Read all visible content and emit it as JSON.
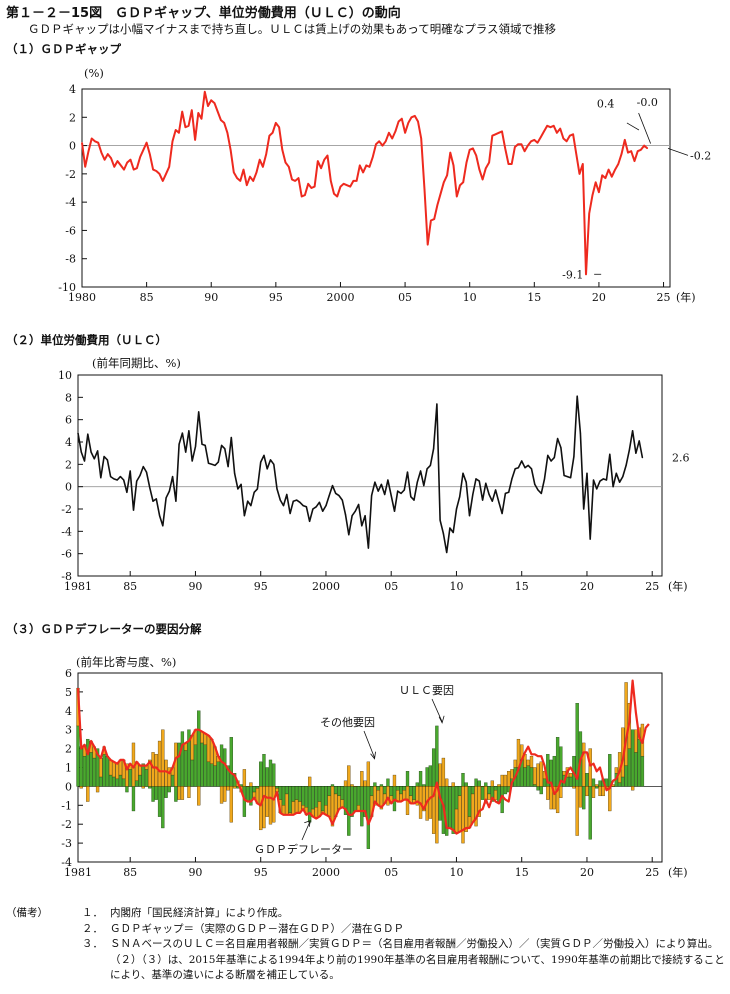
{
  "title": "第１－２－15図　ＧＤＰギャップ、単位労働費用（ＵＬＣ）の動向",
  "subtitle": "ＧＤＰギャップは小幅マイナスまで持ち直し。ＵＬＣは賃上げの効果もあって明確なプラス領域で推移",
  "notes_header": "（備考）",
  "notes": [
    {
      "num": "１．",
      "text": "内閣府「国民経済計算」により作成。"
    },
    {
      "num": "２．",
      "text": "ＧＤＰギャップ＝（実際のＧＤＰ－潜在ＧＤＰ）／潜在ＧＤＰ"
    },
    {
      "num": "３．",
      "text": "ＳＮＡベースのＵＬＣ＝名目雇用者報酬／実質ＧＤＰ＝（名目雇用者報酬／労働投入）／（実質ＧＤＰ／労働投入）により算出。（２）（３）は、2015年基準による1994年より前の1990年基準の名目雇用者報酬について、1990年基準の前期比で接続することにより、基準の違いによる断層を補正している。"
    }
  ],
  "colors": {
    "gap_line": "#ee2a1f",
    "ulc_line": "#111111",
    "deflator_line": "#ee2a1f",
    "ulc_bar": "#49a82e",
    "other_bar": "#f0a81c"
  },
  "chart_data": [
    {
      "type": "line",
      "section_label": "（１）ＧＤＰギャップ",
      "unit_label": "(%)",
      "year_suffix": "(年)",
      "x_start": 1980.0,
      "x_step": 0.25,
      "ylim": [
        -10,
        4
      ],
      "yticks": [
        4,
        2,
        0,
        -2,
        -4,
        -6,
        -8,
        -10
      ],
      "xticks": [
        {
          "v": 1980,
          "label": "1980"
        },
        {
          "v": 1985,
          "label": "85"
        },
        {
          "v": 1990,
          "label": "90"
        },
        {
          "v": 1995,
          "label": "95"
        },
        {
          "v": 2000,
          "label": "2000"
        },
        {
          "v": 2005,
          "label": "05"
        },
        {
          "v": 2010,
          "label": "10"
        },
        {
          "v": 2015,
          "label": "15"
        },
        {
          "v": 2020,
          "label": "20"
        },
        {
          "v": 2025,
          "label": "25"
        }
      ],
      "annotations": [
        {
          "text": "0.4",
          "x": 2023.25,
          "y": 0.4
        },
        {
          "text": "-0.0",
          "x": 2024.0,
          "y": 0.0
        },
        {
          "text": "-0.2",
          "x": 2025.0,
          "y": -0.2
        },
        {
          "text": "-9.1",
          "x": 2020.25,
          "y": -9.1
        }
      ],
      "values": [
        0.2,
        -1.5,
        -0.4,
        0.5,
        0.3,
        0.2,
        -0.5,
        -1.0,
        -0.6,
        -0.9,
        -1.5,
        -1.1,
        -1.4,
        -1.7,
        -1.2,
        -1.0,
        -1.7,
        -1.6,
        -0.8,
        -0.3,
        0.2,
        -0.6,
        -1.7,
        -1.8,
        -2.0,
        -2.5,
        -2.0,
        -1.5,
        0.3,
        1.1,
        0.9,
        2.4,
        1.3,
        1.4,
        2.5,
        0.4,
        2.3,
        1.9,
        3.8,
        2.8,
        3.2,
        3.0,
        2.4,
        1.8,
        1.6,
        0.9,
        -0.3,
        -1.9,
        -2.3,
        -2.5,
        -1.7,
        -2.8,
        -2.2,
        -2.5,
        -1.9,
        -1.0,
        -1.5,
        -0.6,
        0.7,
        0.9,
        1.6,
        1.3,
        -0.3,
        -1.2,
        -1.5,
        -2.4,
        -2.5,
        -2.3,
        -3.6,
        -3.5,
        -2.7,
        -3.0,
        -2.9,
        -1.1,
        -1.6,
        -1.0,
        -0.7,
        -2.5,
        -3.4,
        -3.6,
        -2.9,
        -2.7,
        -2.8,
        -2.9,
        -2.5,
        -2.5,
        -1.4,
        -1.9,
        -1.4,
        -1.5,
        -0.8,
        0.1,
        0.3,
        0.0,
        0.3,
        0.9,
        0.5,
        1.0,
        1.7,
        1.9,
        0.9,
        1.6,
        2.0,
        2.1,
        1.7,
        0.5,
        -3.1,
        -7.0,
        -5.3,
        -5.2,
        -4.2,
        -3.4,
        -2.6,
        -2.1,
        -0.5,
        -1.4,
        -3.6,
        -2.8,
        -2.6,
        -1.2,
        -0.3,
        -0.2,
        -0.7,
        -1.7,
        -2.4,
        -1.6,
        -1.2,
        0.7,
        0.8,
        0.9,
        1.0,
        -0.2,
        -1.3,
        -1.3,
        -0.1,
        0.1,
        0.1,
        -0.4,
        0.0,
        0.3,
        0.4,
        0.2,
        0.6,
        1.0,
        1.4,
        1.3,
        1.4,
        0.9,
        1.2,
        0.5,
        0.3,
        0.7,
        0.8,
        -0.6,
        -2.0,
        -1.3,
        -9.1,
        -4.8,
        -3.5,
        -2.6,
        -3.3,
        -2.1,
        -2.3,
        -1.7,
        -2.2,
        -1.7,
        -1.3,
        -0.6,
        0.4,
        -0.5,
        -0.4,
        -1.1,
        -0.4,
        -0.3,
        0.0,
        -0.2
      ]
    },
    {
      "type": "line",
      "section_label": "（２）単位労働費用（ＵＬＣ）",
      "unit_label": "(前年同期比、%)",
      "year_suffix": "(年)",
      "x_start": 1981.0,
      "x_step": 0.25,
      "ylim": [
        -8,
        10
      ],
      "yticks": [
        10,
        8,
        6,
        4,
        2,
        0,
        -2,
        -4,
        -6,
        -8
      ],
      "xticks": [
        {
          "v": 1981,
          "label": "1981"
        },
        {
          "v": 1985,
          "label": "85"
        },
        {
          "v": 1990,
          "label": "90"
        },
        {
          "v": 1995,
          "label": "95"
        },
        {
          "v": 2000,
          "label": "2000"
        },
        {
          "v": 2005,
          "label": "05"
        },
        {
          "v": 2010,
          "label": "10"
        },
        {
          "v": 2015,
          "label": "15"
        },
        {
          "v": 2020,
          "label": "20"
        },
        {
          "v": 2025,
          "label": "25"
        }
      ],
      "annotations": [
        {
          "text": "2.6",
          "x": 2025.0,
          "y": 2.6
        }
      ],
      "values": [
        4.8,
        3.1,
        2.3,
        4.7,
        3.1,
        2.5,
        3.2,
        0.8,
        2.7,
        2.4,
        0.9,
        0.7,
        0.6,
        0.9,
        0.6,
        -0.5,
        1.4,
        -2.1,
        0.5,
        1.0,
        1.8,
        1.3,
        -0.1,
        -1.3,
        -1.1,
        -2.6,
        -3.5,
        -1.0,
        -0.4,
        0.9,
        -1.3,
        3.8,
        4.8,
        3.1,
        5.0,
        2.3,
        3.6,
        6.7,
        3.8,
        3.7,
        2.1,
        2.0,
        1.9,
        2.2,
        3.7,
        3.4,
        1.8,
        4.4,
        1.2,
        -0.2,
        0.2,
        -2.6,
        -1.3,
        -1.7,
        -0.5,
        -0.2,
        2.2,
        2.8,
        1.6,
        2.4,
        2.0,
        -0.2,
        -1.2,
        -1.7,
        -0.7,
        -2.4,
        -1.3,
        -1.2,
        -1.4,
        -1.7,
        -1.8,
        -3.1,
        -2.0,
        -1.8,
        -1.4,
        -2.2,
        -1.7,
        -0.8,
        0.1,
        -0.6,
        -0.8,
        -1.2,
        -2.5,
        -4.3,
        -2.6,
        -2.2,
        -1.6,
        -3.5,
        -2.6,
        -5.5,
        -0.8,
        0.4,
        -0.4,
        0.2,
        -0.7,
        0.6,
        -0.8,
        -2.2,
        -0.4,
        -0.6,
        -0.3,
        1.3,
        -0.9,
        -1.2,
        0.4,
        1.4,
        0.1,
        1.6,
        1.9,
        3.4,
        7.4,
        -3.0,
        -4.2,
        -5.9,
        -3.7,
        -4.1,
        -2.0,
        -0.9,
        1.2,
        0.4,
        -2.6,
        -0.7,
        0.7,
        0.5,
        -1.2,
        0.3,
        -0.7,
        -1.3,
        -0.3,
        -1.4,
        -2.4,
        -0.6,
        -0.5,
        0.7,
        1.6,
        1.7,
        2.3,
        1.7,
        1.9,
        1.6,
        0.2,
        -0.3,
        -0.6,
        0.7,
        2.8,
        2.3,
        2.6,
        4.3,
        3.5,
        1.0,
        0.9,
        0.8,
        2.7,
        8.1,
        4.8,
        -2.0,
        1.2,
        -4.7,
        0.6,
        -0.2,
        0.5,
        0.7,
        0.6,
        2.9,
        0.0,
        1.2,
        0.4,
        0.9,
        1.9,
        3.3,
        5.0,
        3.0,
        4.1,
        2.6
      ]
    },
    {
      "type": "bar",
      "section_label": "（３）ＧＤＰデフレーターの要因分解",
      "unit_label": "(前年比寄与度、%)",
      "year_suffix": "(年)",
      "x_start": 1981.0,
      "x_step": 0.25,
      "ylim": [
        -4,
        6
      ],
      "yticks": [
        6,
        5,
        4,
        3,
        2,
        1,
        0,
        -1,
        -2,
        -3,
        -4
      ],
      "xticks": [
        {
          "v": 1981,
          "label": "1981"
        },
        {
          "v": 1985,
          "label": "85"
        },
        {
          "v": 1990,
          "label": "90"
        },
        {
          "v": 1995,
          "label": "95"
        },
        {
          "v": 2000,
          "label": "2000"
        },
        {
          "v": 2005,
          "label": "05"
        },
        {
          "v": 2010,
          "label": "10"
        },
        {
          "v": 2015,
          "label": "15"
        },
        {
          "v": 2020,
          "label": "20"
        },
        {
          "v": 2025,
          "label": "25"
        }
      ],
      "series": [
        {
          "name": "ＵＬＣ要因",
          "kind": "bar",
          "values": [
            3.2,
            2.1,
            1.6,
            2.5,
            1.8,
            1.5,
            2.0,
            0.5,
            1.7,
            1.6,
            0.6,
            0.5,
            0.4,
            0.6,
            0.4,
            -0.3,
            0.9,
            -1.3,
            0.3,
            0.6,
            1.2,
            0.9,
            -0.1,
            -0.8,
            -0.7,
            -1.6,
            -2.2,
            -0.6,
            -0.3,
            0.6,
            -0.8,
            2.3,
            2.9,
            1.9,
            3.0,
            1.4,
            2.2,
            4.0,
            2.3,
            2.2,
            1.3,
            1.2,
            1.1,
            1.3,
            2.2,
            2.0,
            1.1,
            2.6,
            0.7,
            -0.1,
            0.1,
            -1.6,
            -0.8,
            -1.0,
            -0.3,
            -0.1,
            1.3,
            1.7,
            1.0,
            1.4,
            1.2,
            -0.1,
            -0.7,
            -1.0,
            -0.4,
            -1.4,
            -0.8,
            -0.7,
            -0.8,
            -1.0,
            -1.1,
            -1.9,
            -1.2,
            -1.1,
            -0.8,
            -1.3,
            -1.0,
            -0.5,
            0.1,
            -0.4,
            -0.5,
            -0.7,
            -1.5,
            -2.6,
            -1.6,
            -1.3,
            -1.0,
            -2.1,
            -1.6,
            -3.3,
            -0.5,
            0.2,
            -0.2,
            0.1,
            -0.4,
            0.4,
            -0.5,
            -1.3,
            -0.2,
            -0.4,
            -0.2,
            0.8,
            -0.5,
            -0.7,
            0.2,
            0.8,
            0.1,
            1.0,
            1.1,
            2.0,
            3.2,
            -1.8,
            -2.5,
            -2.6,
            -2.2,
            -2.5,
            -1.2,
            -0.5,
            0.7,
            0.2,
            -1.6,
            -0.4,
            0.4,
            0.3,
            -0.7,
            0.2,
            -0.4,
            -0.8,
            -0.2,
            -0.8,
            -1.4,
            -0.4,
            -0.3,
            0.4,
            1.0,
            1.0,
            1.4,
            1.0,
            1.1,
            1.0,
            0.1,
            -0.2,
            -0.4,
            0.4,
            1.7,
            1.4,
            1.6,
            2.6,
            2.1,
            0.6,
            0.5,
            0.5,
            1.6,
            4.4,
            2.9,
            -1.2,
            0.7,
            -2.8,
            0.4,
            -0.1,
            0.3,
            0.4,
            0.4,
            1.7,
            0.0,
            0.7,
            0.2,
            0.5,
            1.1,
            2.0,
            3.0,
            1.8,
            2.5,
            1.6
          ]
        },
        {
          "name": "その他要因",
          "kind": "bar",
          "values": [
            2.0,
            -0.1,
            0.6,
            -0.8,
            0.6,
            0.6,
            -0.3,
            1.0,
            0.4,
            0.0,
            0.8,
            0.8,
            0.8,
            0.8,
            1.0,
            1.2,
            0.3,
            2.3,
            1.0,
            0.5,
            -0.1,
            0.2,
            1.4,
            1.8,
            1.7,
            2.4,
            3.0,
            1.4,
            1.0,
            0.4,
            2.3,
            -0.7,
            -0.7,
            0.4,
            -0.6,
            1.3,
            0.8,
            -1.0,
            0.6,
            0.6,
            1.4,
            1.3,
            1.0,
            0.3,
            -0.9,
            -0.8,
            -0.2,
            -1.9,
            -0.1,
            0.3,
            -0.3,
            0.9,
            0.0,
            0.2,
            -0.3,
            -0.8,
            -2.3,
            -2.2,
            -1.6,
            -2.0,
            -1.9,
            -0.2,
            -0.7,
            -0.5,
            -1.1,
            -0.1,
            -0.7,
            -0.7,
            -0.6,
            -0.2,
            -0.4,
            0.5,
            -0.4,
            -0.6,
            -0.8,
            -0.1,
            -0.5,
            -1.1,
            -2.1,
            -1.2,
            -0.7,
            -0.4,
            0.3,
            1.1,
            0.1,
            0.0,
            -0.3,
            0.8,
            0.3,
            1.3,
            -1.1,
            -1.0,
            -0.8,
            -1.2,
            -0.5,
            -1.0,
            -0.4,
            0.6,
            -0.6,
            -0.4,
            -0.5,
            -1.5,
            -0.4,
            -0.2,
            -1.0,
            -1.7,
            -1.3,
            -1.8,
            -1.7,
            -2.5,
            -3.0,
            1.2,
            1.5,
            0.4,
            0.0,
            0.2,
            -1.3,
            -1.9,
            -3.0,
            -2.4,
            -0.6,
            -1.5,
            -2.1,
            -1.6,
            0.0,
            -0.9,
            -0.3,
            0.3,
            -0.5,
            0.1,
            0.6,
            0.6,
            0.8,
            0.5,
            0.4,
            1.5,
            0.8,
            0.7,
            0.3,
            0.6,
            0.9,
            1.2,
            1.3,
            0.4,
            -0.7,
            -1.2,
            -1.2,
            -1.4,
            -0.6,
            0.2,
            0.5,
            0.2,
            -0.1,
            -2.6,
            -1.1,
            2.3,
            -0.5,
            2.0,
            -0.6,
            0.1,
            -0.5,
            -0.5,
            -0.1,
            -1.3,
            0.1,
            0.3,
            1.6,
            2.6,
            4.4,
            2.4,
            -0.2,
            1.2,
            0.6,
            1.7
          ]
        },
        {
          "name": "ＧＤＰデフレーター",
          "kind": "line",
          "values": [
            5.2,
            2.0,
            2.2,
            1.7,
            2.4,
            2.1,
            1.7,
            1.5,
            2.1,
            1.6,
            1.4,
            1.3,
            1.2,
            1.4,
            1.4,
            0.9,
            1.2,
            1.0,
            1.3,
            1.1,
            1.1,
            1.1,
            1.3,
            1.0,
            1.0,
            0.8,
            0.8,
            0.8,
            0.7,
            1.0,
            1.5,
            1.6,
            2.2,
            2.3,
            2.4,
            2.7,
            3.0,
            3.0,
            2.9,
            2.8,
            2.7,
            2.5,
            2.1,
            1.6,
            1.3,
            1.2,
            0.9,
            0.7,
            0.6,
            0.2,
            -0.2,
            -0.7,
            -0.8,
            -0.8,
            -0.6,
            -0.9,
            -1.0,
            -0.5,
            -0.6,
            -0.6,
            -0.7,
            -0.3,
            -1.4,
            -1.5,
            -1.5,
            -1.5,
            -1.5,
            -1.4,
            -1.4,
            -1.2,
            -1.5,
            -1.4,
            -1.6,
            -1.7,
            -1.6,
            -1.4,
            -1.5,
            -1.6,
            -2.0,
            -1.6,
            -1.2,
            -1.1,
            -1.2,
            -1.5,
            -1.5,
            -1.3,
            -1.3,
            -1.3,
            -1.3,
            -2.0,
            -1.6,
            -0.8,
            -1.0,
            -1.1,
            -0.9,
            -0.6,
            -0.9,
            -0.7,
            -0.8,
            -0.8,
            -0.7,
            -0.7,
            -0.9,
            -0.9,
            -0.8,
            -0.9,
            -1.2,
            -0.8,
            -0.6,
            -0.5,
            0.2,
            -0.6,
            -1.0,
            -2.2,
            -2.2,
            -2.3,
            -2.5,
            -2.4,
            -2.3,
            -2.2,
            -2.2,
            -1.9,
            -1.7,
            -1.3,
            -1.2,
            -0.7,
            -1.1,
            -0.6,
            -0.8,
            -0.9,
            -0.5,
            -0.7,
            -0.8,
            0.2,
            0.5,
            0.9,
            1.4,
            1.8,
            2.1,
            1.7,
            1.7,
            1.6,
            1.6,
            1.1,
            0.2,
            0.2,
            -0.4,
            -0.2,
            0.3,
            0.2,
            0.8,
            1.0,
            0.7,
            0.4,
            1.4,
            1.8,
            1.8,
            1.1,
            1.2,
            0.8,
            1.0,
            0.3,
            -0.2,
            -0.1,
            0.3,
            0.4,
            0.8,
            1.4,
            2.5,
            3.4,
            5.6,
            3.9,
            2.6,
            2.3,
            3.1,
            3.3
          ]
        }
      ],
      "annotations": [
        {
          "text": "ＵＬＣ要因",
          "arrow_to": {
            "x": 2008.9,
            "y": 3.1
          }
        },
        {
          "text": "その他要因",
          "arrow_to": {
            "x": 2003.8,
            "y": 1.2
          }
        },
        {
          "text": "ＧＤＰデフレーター",
          "arrow_to": {
            "x": 1998.8,
            "y": -1.5
          }
        }
      ]
    }
  ]
}
